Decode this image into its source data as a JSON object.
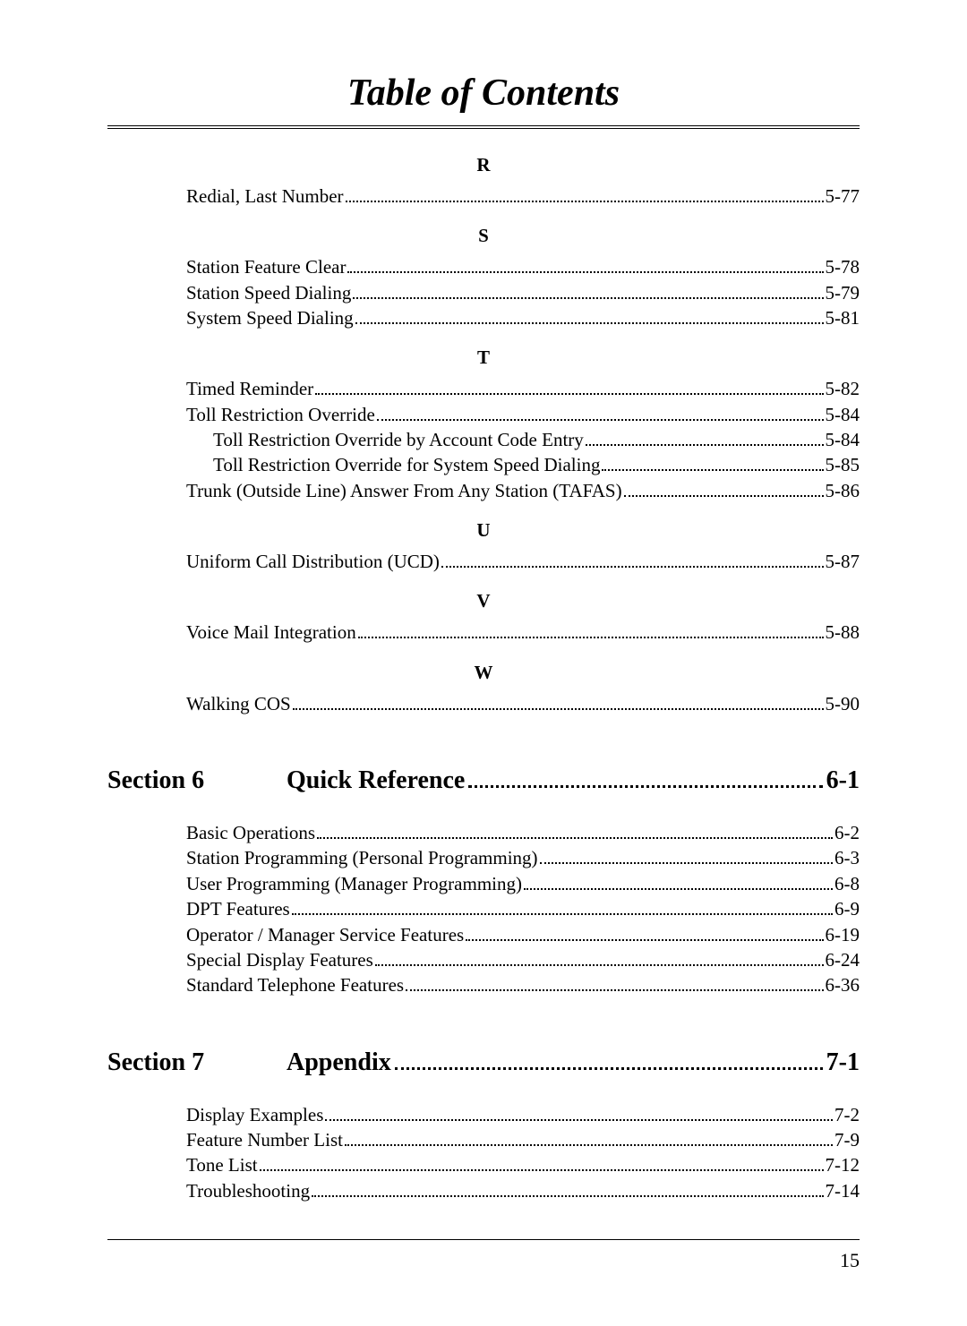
{
  "page_title": "Table of Contents",
  "page_number": "15",
  "letters": [
    {
      "letter": "R",
      "entries": [
        {
          "label": "Redial, Last Number",
          "page": "5-77",
          "indent": false
        }
      ]
    },
    {
      "letter": "S",
      "entries": [
        {
          "label": "Station Feature Clear",
          "page": "5-78",
          "indent": false
        },
        {
          "label": "Station Speed Dialing",
          "page": "5-79",
          "indent": false
        },
        {
          "label": "System Speed Dialing",
          "page": "5-81",
          "indent": false
        }
      ]
    },
    {
      "letter": "T",
      "entries": [
        {
          "label": "Timed Reminder",
          "page": "5-82",
          "indent": false
        },
        {
          "label": "Toll Restriction Override",
          "page": "5-84",
          "indent": false
        },
        {
          "label": "Toll Restriction Override by Account Code Entry",
          "page": "5-84",
          "indent": true
        },
        {
          "label": "Toll Restriction Override for System Speed Dialing",
          "page": "5-85",
          "indent": true
        },
        {
          "label": "Trunk (Outside Line) Answer From Any Station (TAFAS)",
          "page": "5-86",
          "indent": false
        }
      ]
    },
    {
      "letter": "U",
      "entries": [
        {
          "label": "Uniform Call Distribution (UCD)",
          "page": "5-87",
          "indent": false
        }
      ]
    },
    {
      "letter": "V",
      "entries": [
        {
          "label": "Voice Mail Integration",
          "page": "5-88",
          "indent": false
        }
      ]
    },
    {
      "letter": "W",
      "entries": [
        {
          "label": "Walking COS",
          "page": "5-90",
          "indent": false
        }
      ]
    }
  ],
  "sections": [
    {
      "section_label": "Section 6",
      "title": "Quick Reference",
      "page": "6-1",
      "entries": [
        {
          "label": "Basic Operations",
          "page": "6-2"
        },
        {
          "label": "Station Programming (Personal Programming)",
          "page": "6-3"
        },
        {
          "label": "User Programming (Manager Programming)",
          "page": "6-8"
        },
        {
          "label": "DPT Features",
          "page": "6-9"
        },
        {
          "label": "Operator / Manager Service Features",
          "page": "6-19"
        },
        {
          "label": "Special Display Features",
          "page": "6-24"
        },
        {
          "label": "Standard Telephone Features",
          "page": "6-36"
        }
      ]
    },
    {
      "section_label": "Section 7",
      "title": "Appendix",
      "page": "7-1",
      "entries": [
        {
          "label": "Display Examples",
          "page": "7-2"
        },
        {
          "label": "Feature Number List",
          "page": "7-9"
        },
        {
          "label": "Tone List",
          "page": "7-12"
        },
        {
          "label": "Troubleshooting",
          "page": "7-14"
        }
      ]
    }
  ]
}
